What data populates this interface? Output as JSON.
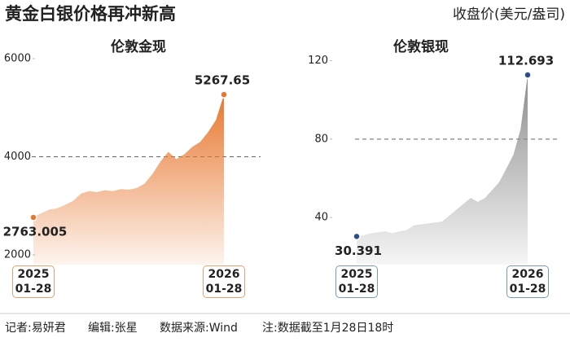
{
  "title": "黄金白银价格再冲新高",
  "unit": "收盘价(美元/盎司)",
  "footer": [
    "记者:易妍君",
    "编辑:张星",
    "数据来源:Wind",
    "注:数据截至1月28日18时"
  ],
  "chart_data": [
    {
      "type": "area",
      "title": "伦敦金现",
      "categories": [
        "2025\n01-28",
        null,
        null,
        null,
        null,
        null,
        null,
        null,
        null,
        null,
        null,
        null,
        null,
        null,
        null,
        null,
        null,
        null,
        null,
        null,
        null,
        null,
        null,
        null,
        "2026\n01-28"
      ],
      "values": [
        2763.005,
        2850,
        2920,
        2950,
        3020,
        3100,
        3250,
        3300,
        3280,
        3320,
        3300,
        3340,
        3330,
        3360,
        3450,
        3650,
        3900,
        4100,
        3950,
        4050,
        4200,
        4300,
        4500,
        4750,
        5267.65
      ],
      "color": "#e8772e",
      "marker_color": "#e8772e",
      "box_color": "#e8a070",
      "ylim": [
        1800,
        6200
      ],
      "yticks": [
        2000,
        4000,
        6000
      ],
      "ref_line": 4000
    },
    {
      "type": "area",
      "title": "伦敦银现",
      "categories": [
        "2025\n01-28",
        null,
        null,
        null,
        null,
        null,
        null,
        null,
        null,
        null,
        null,
        null,
        null,
        null,
        null,
        null,
        null,
        null,
        null,
        null,
        null,
        null,
        null,
        null,
        "2026\n01-28"
      ],
      "values": [
        30.391,
        31,
        32,
        32.5,
        33,
        32,
        33,
        33.5,
        36,
        36.5,
        37,
        37.5,
        38,
        41,
        44,
        47,
        50,
        48,
        50,
        54,
        58,
        65,
        72,
        85,
        112.693
      ],
      "color": "#8c8c8c",
      "marker_color": "#2b4d8c",
      "box_color": "#7a9ab8",
      "ylim": [
        16,
        126
      ],
      "yticks": [
        40,
        80,
        120
      ],
      "ref_line": 80
    }
  ]
}
